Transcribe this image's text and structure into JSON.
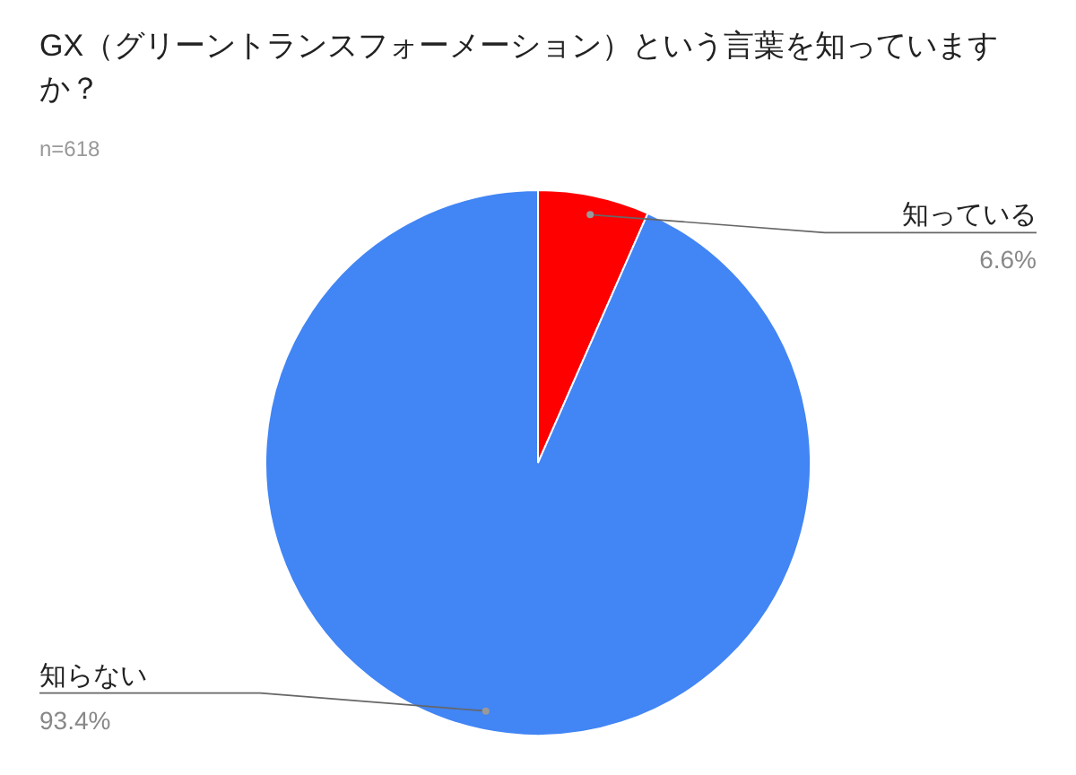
{
  "chart_data": {
    "type": "pie",
    "title": "GX（グリーントランスフォーメーション）という言葉を知っていますか？",
    "subtitle": "n=618",
    "categories": [
      "知っている",
      "知らない"
    ],
    "values": [
      6.6,
      93.4
    ],
    "value_labels": [
      "6.6%",
      "93.4%"
    ],
    "colors": [
      "#ff0000",
      "#4285f4"
    ]
  }
}
